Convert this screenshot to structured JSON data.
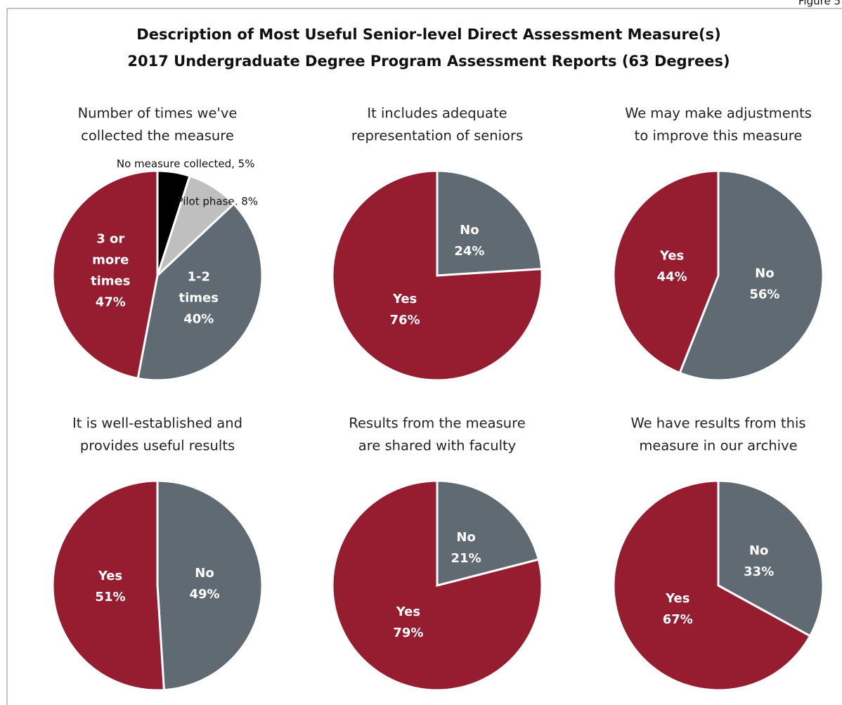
{
  "figure_label": "Figure 5",
  "title": [
    "Description of Most Useful Senior-level Direct Assessment Measure(s)",
    "2017 Undergraduate Degree Program Assessment Reports (63 Degrees)"
  ],
  "chart_data": [
    {
      "type": "pie",
      "title": [
        "Number of times we've",
        "collected the measure"
      ],
      "categories": [
        "No measure collected",
        "Pilot phase",
        "1-2 times",
        "3 or more times"
      ],
      "values": [
        5,
        8,
        40,
        47
      ],
      "value_labels": [
        "5%",
        "8%",
        "40%",
        "47%"
      ],
      "colors": [
        "#000000",
        "#bfbfbf",
        "#5f6a72",
        "#961c30"
      ]
    },
    {
      "type": "pie",
      "title": [
        "It includes adequate",
        "representation of seniors"
      ],
      "categories": [
        "No",
        "Yes"
      ],
      "values": [
        24,
        76
      ],
      "value_labels": [
        "24%",
        "76%"
      ],
      "colors": [
        "#5f6a72",
        "#961c30"
      ]
    },
    {
      "type": "pie",
      "title": [
        "We may make adjustments",
        "to improve this measure"
      ],
      "categories": [
        "No",
        "Yes"
      ],
      "values": [
        56,
        44
      ],
      "value_labels": [
        "56%",
        "44%"
      ],
      "colors": [
        "#5f6a72",
        "#961c30"
      ]
    },
    {
      "type": "pie",
      "title": [
        "It is well-established and",
        "provides useful results"
      ],
      "categories": [
        "No",
        "Yes"
      ],
      "values": [
        49,
        51
      ],
      "value_labels": [
        "49%",
        "51%"
      ],
      "colors": [
        "#5f6a72",
        "#961c30"
      ]
    },
    {
      "type": "pie",
      "title": [
        "Results from the measure",
        "are shared with faculty"
      ],
      "categories": [
        "No",
        "Yes"
      ],
      "values": [
        21,
        79
      ],
      "value_labels": [
        "21%",
        "79%"
      ],
      "colors": [
        "#5f6a72",
        "#961c30"
      ]
    },
    {
      "type": "pie",
      "title": [
        "We have results from this",
        "measure in our archive"
      ],
      "categories": [
        "No",
        "Yes"
      ],
      "values": [
        33,
        67
      ],
      "value_labels": [
        "33%",
        "67%"
      ],
      "colors": [
        "#5f6a72",
        "#961c30"
      ]
    }
  ]
}
